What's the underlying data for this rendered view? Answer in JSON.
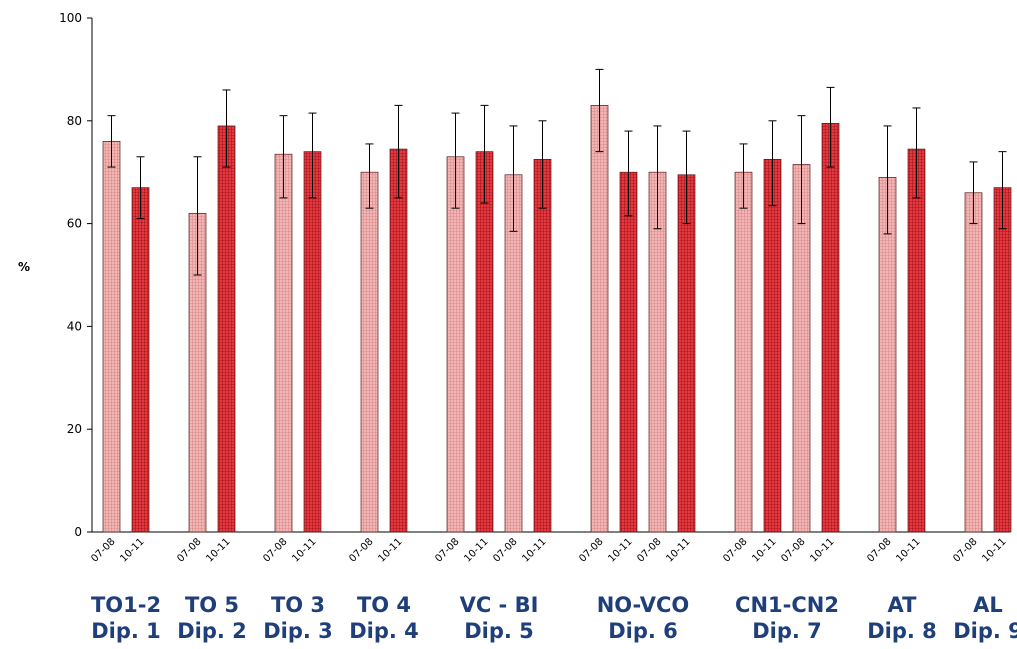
{
  "chart_data": {
    "type": "bar",
    "ylabel": "%",
    "ylim": [
      0,
      100
    ],
    "yticks": [
      0,
      20,
      40,
      60,
      80,
      100
    ],
    "grid": false,
    "colors": {
      "light": "#f2b4b4",
      "dark": "#e8383e",
      "outline": "#6b1a1a",
      "label": "#1f3f7a"
    },
    "groups": [
      {
        "name": "TO1-2",
        "dip": "Dip. 1",
        "bars": [
          {
            "label": "07-08",
            "value": 76,
            "low": 71,
            "high": 81,
            "shade": "light"
          },
          {
            "label": "10-11",
            "value": 67,
            "low": 61,
            "high": 73,
            "shade": "dark"
          }
        ]
      },
      {
        "name": "TO 5",
        "dip": "Dip. 2",
        "bars": [
          {
            "label": "07-08",
            "value": 62,
            "low": 50,
            "high": 73,
            "shade": "light"
          },
          {
            "label": "10-11",
            "value": 79,
            "low": 71,
            "high": 86,
            "shade": "dark"
          }
        ]
      },
      {
        "name": "TO 3",
        "dip": "Dip. 3",
        "bars": [
          {
            "label": "07-08",
            "value": 73.5,
            "low": 65,
            "high": 81,
            "shade": "light"
          },
          {
            "label": "10-11",
            "value": 74,
            "low": 65,
            "high": 81.5,
            "shade": "dark"
          }
        ]
      },
      {
        "name": "TO 4",
        "dip": "Dip. 4",
        "bars": [
          {
            "label": "07-08",
            "value": 70,
            "low": 63,
            "high": 75.5,
            "shade": "light"
          },
          {
            "label": "10-11",
            "value": 74.5,
            "low": 65,
            "high": 83,
            "shade": "dark"
          }
        ]
      },
      {
        "name": "VC - BI",
        "dip": "Dip. 5",
        "bars": [
          {
            "label": "07-08",
            "value": 73,
            "low": 63,
            "high": 81.5,
            "shade": "light"
          },
          {
            "label": "10-11",
            "value": 74,
            "low": 64,
            "high": 83,
            "shade": "dark"
          },
          {
            "label": "07-08",
            "value": 69.5,
            "low": 58.5,
            "high": 79,
            "shade": "light"
          },
          {
            "label": "10-11",
            "value": 72.5,
            "low": 63,
            "high": 80,
            "shade": "dark"
          }
        ]
      },
      {
        "name": "NO-VCO",
        "dip": "Dip. 6",
        "bars": [
          {
            "label": "07-08",
            "value": 83,
            "low": 74,
            "high": 90,
            "shade": "light"
          },
          {
            "label": "10-11",
            "value": 70,
            "low": 61.5,
            "high": 78,
            "shade": "dark"
          },
          {
            "label": "07-08",
            "value": 70,
            "low": 59,
            "high": 79,
            "shade": "light"
          },
          {
            "label": "10-11",
            "value": 69.5,
            "low": 60,
            "high": 78,
            "shade": "dark"
          }
        ]
      },
      {
        "name": "CN1-CN2",
        "dip": "Dip. 7",
        "bars": [
          {
            "label": "07-08",
            "value": 70,
            "low": 63,
            "high": 75.5,
            "shade": "light"
          },
          {
            "label": "10-11",
            "value": 72.5,
            "low": 63.5,
            "high": 80,
            "shade": "dark"
          },
          {
            "label": "07-08",
            "value": 71.5,
            "low": 60,
            "high": 81,
            "shade": "light"
          },
          {
            "label": "10-11",
            "value": 79.5,
            "low": 71,
            "high": 86.5,
            "shade": "dark"
          }
        ]
      },
      {
        "name": "AT",
        "dip": "Dip. 8",
        "bars": [
          {
            "label": "07-08",
            "value": 69,
            "low": 58,
            "high": 79,
            "shade": "light"
          },
          {
            "label": "10-11",
            "value": 74.5,
            "low": 65,
            "high": 82.5,
            "shade": "dark"
          }
        ]
      },
      {
        "name": "AL",
        "dip": "Dip. 9",
        "bars": [
          {
            "label": "07-08",
            "value": 66,
            "low": 60,
            "high": 72,
            "shade": "light"
          },
          {
            "label": "10-11",
            "value": 67,
            "low": 59,
            "high": 74,
            "shade": "dark"
          }
        ]
      }
    ]
  }
}
